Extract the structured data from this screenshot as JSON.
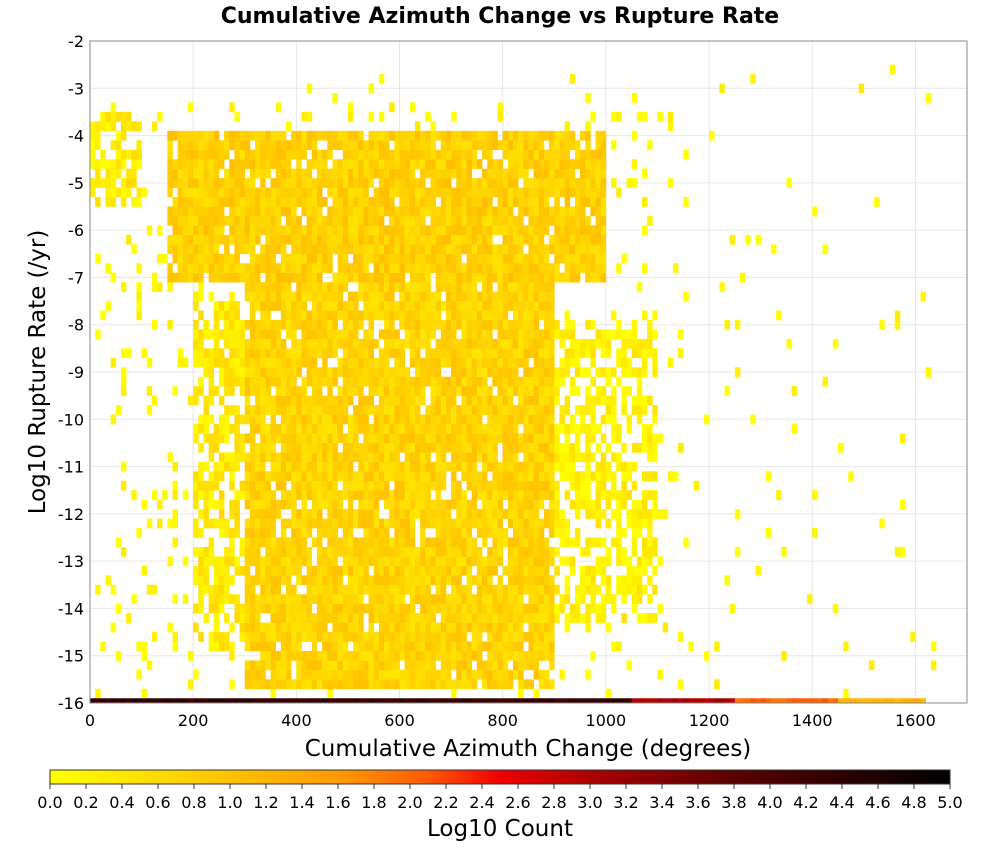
{
  "chart_data": {
    "type": "heatmap",
    "title": "Cumulative Azimuth Change vs Rupture Rate",
    "xlabel": "Cumulative Azimuth Change (degrees)",
    "ylabel": "Log10 Rupture Rate (/yr)",
    "xlim": [
      0,
      1700
    ],
    "ylim": [
      -16,
      -2
    ],
    "x_ticks": [
      "0",
      "200",
      "400",
      "600",
      "800",
      "1000",
      "1200",
      "1400",
      "1600"
    ],
    "y_ticks": [
      "-2",
      "-3",
      "-4",
      "-5",
      "-6",
      "-7",
      "-8",
      "-9",
      "-10",
      "-11",
      "-12",
      "-13",
      "-14",
      "-15",
      "-16"
    ],
    "grid": true,
    "bin_width_degrees": 20,
    "bin_height_log10": 0.2,
    "colorbar": {
      "label": "Log10 Count",
      "range": [
        0.0,
        5.0
      ],
      "ticks": [
        "0.0",
        "0.2",
        "0.4",
        "0.6",
        "0.8",
        "1.0",
        "1.2",
        "1.4",
        "1.6",
        "1.8",
        "2.0",
        "2.2",
        "2.4",
        "2.6",
        "2.8",
        "3.0",
        "3.2",
        "3.4",
        "3.6",
        "3.8",
        "4.0",
        "4.2",
        "4.4",
        "4.6",
        "4.8",
        "5.0"
      ],
      "colors": [
        "#ffff00",
        "#ffa500",
        "#ff0000",
        "#8b0000",
        "#000000"
      ]
    },
    "density_regions": [
      {
        "x_range": [
          0,
          1050
        ],
        "y_range": [
          -16.0,
          -15.9
        ],
        "log10_count": 4.3
      },
      {
        "x_range": [
          1050,
          1250
        ],
        "y_range": [
          -16.0,
          -15.9
        ],
        "log10_count": 3.0
      },
      {
        "x_range": [
          1250,
          1450
        ],
        "y_range": [
          -16.0,
          -15.9
        ],
        "log10_count": 2.0
      },
      {
        "x_range": [
          1450,
          1620
        ],
        "y_range": [
          -16.0,
          -15.9
        ],
        "log10_count": 1.2
      },
      {
        "x_range": [
          0,
          100
        ],
        "y_range": [
          -5.6,
          -3.7
        ],
        "log10_count": 0.3
      },
      {
        "x_range": [
          150,
          1000
        ],
        "y_range": [
          -7.3,
          -4.0
        ],
        "log10_count": 0.75
      },
      {
        "x_range": [
          300,
          900
        ],
        "y_range": [
          -15.8,
          -7.3
        ],
        "log10_count": 0.7
      },
      {
        "x_range": [
          200,
          300
        ],
        "y_range": [
          -15.0,
          -7.6
        ],
        "log10_count": 0.35
      },
      {
        "x_range": [
          900,
          1100
        ],
        "y_range": [
          -14.5,
          -8.0
        ],
        "log10_count": 0.2
      }
    ]
  }
}
